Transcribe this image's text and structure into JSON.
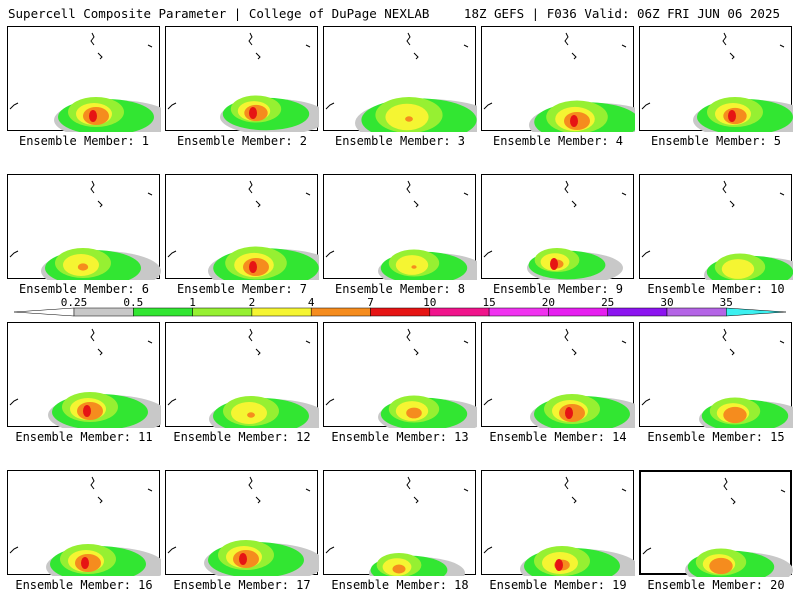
{
  "header": {
    "left": "Supercell Composite Parameter | College of DuPage NEXLAB",
    "right": "18Z GEFS | F036 Valid: 06Z FRI JUN 06 2025"
  },
  "members": [
    {
      "label": "Ensemble Member: 1"
    },
    {
      "label": "Ensemble Member: 2"
    },
    {
      "label": "Ensemble Member: 3"
    },
    {
      "label": "Ensemble Member: 4"
    },
    {
      "label": "Ensemble Member: 5"
    },
    {
      "label": "Ensemble Member: 6"
    },
    {
      "label": "Ensemble Member: 7"
    },
    {
      "label": "Ensemble Member: 8"
    },
    {
      "label": "Ensemble Member: 9"
    },
    {
      "label": "Ensemble Member: 10"
    },
    {
      "label": "Ensemble Member: 11"
    },
    {
      "label": "Ensemble Member: 12"
    },
    {
      "label": "Ensemble Member: 13"
    },
    {
      "label": "Ensemble Member: 14"
    },
    {
      "label": "Ensemble Member: 15"
    },
    {
      "label": "Ensemble Member: 16"
    },
    {
      "label": "Ensemble Member: 17"
    },
    {
      "label": "Ensemble Member: 18"
    },
    {
      "label": "Ensemble Member: 19"
    },
    {
      "label": "Ensemble Member: 20"
    }
  ],
  "colorbar": {
    "levels": [
      "0.25",
      "0.5",
      "1",
      "2",
      "4",
      "7",
      "10",
      "15",
      "20",
      "25",
      "30",
      "35"
    ],
    "colors": [
      "#ffffff",
      "#c8c8c8",
      "#32e632",
      "#96f032",
      "#f5f532",
      "#f58c1e",
      "#e61414",
      "#f0148c",
      "#f032f0",
      "#e61ef0",
      "#8c14f0",
      "#b464e6",
      "#3cf0f0"
    ]
  },
  "selected_member": 20
}
